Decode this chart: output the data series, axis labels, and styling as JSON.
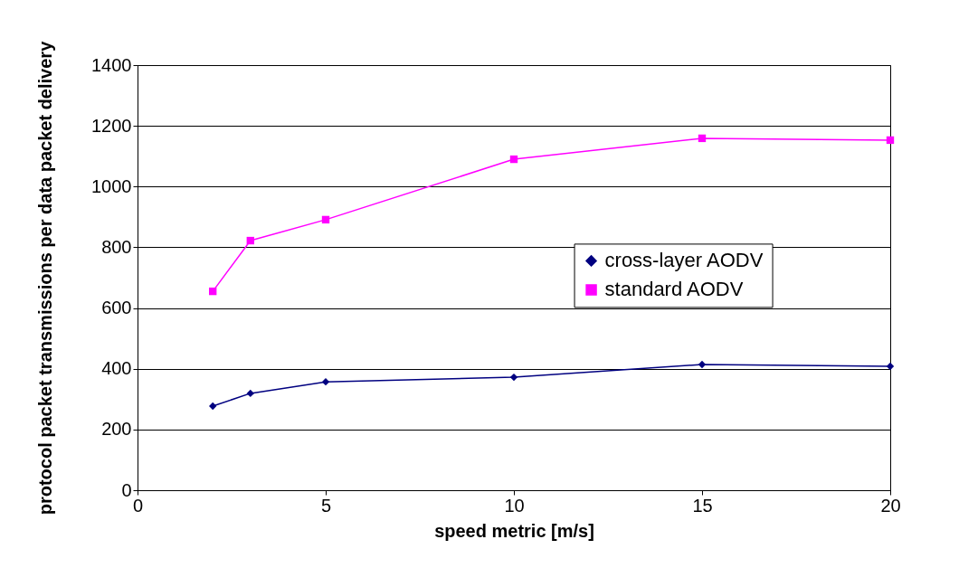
{
  "chart_data": {
    "type": "line",
    "xlabel": "speed metric [m/s]",
    "ylabel": "protocol packet transmissions per data packet delivery",
    "x": [
      2,
      3,
      5,
      10,
      15,
      20
    ],
    "series": [
      {
        "name": "cross-layer AODV",
        "color": "#000080",
        "marker": "diamond",
        "values": [
          277,
          319,
          357,
          372,
          414,
          408
        ]
      },
      {
        "name": "standard AODV",
        "color": "#ff00ff",
        "marker": "square",
        "values": [
          655,
          822,
          891,
          1090,
          1159,
          1153
        ]
      }
    ],
    "xlim": [
      0,
      20
    ],
    "xticks": [
      0,
      5,
      10,
      15,
      20
    ],
    "ylim": [
      0,
      1400
    ],
    "yticks": [
      0,
      200,
      400,
      600,
      800,
      1000,
      1200,
      1400
    ],
    "grid": "y",
    "legend": "right",
    "line_style": "solid"
  }
}
